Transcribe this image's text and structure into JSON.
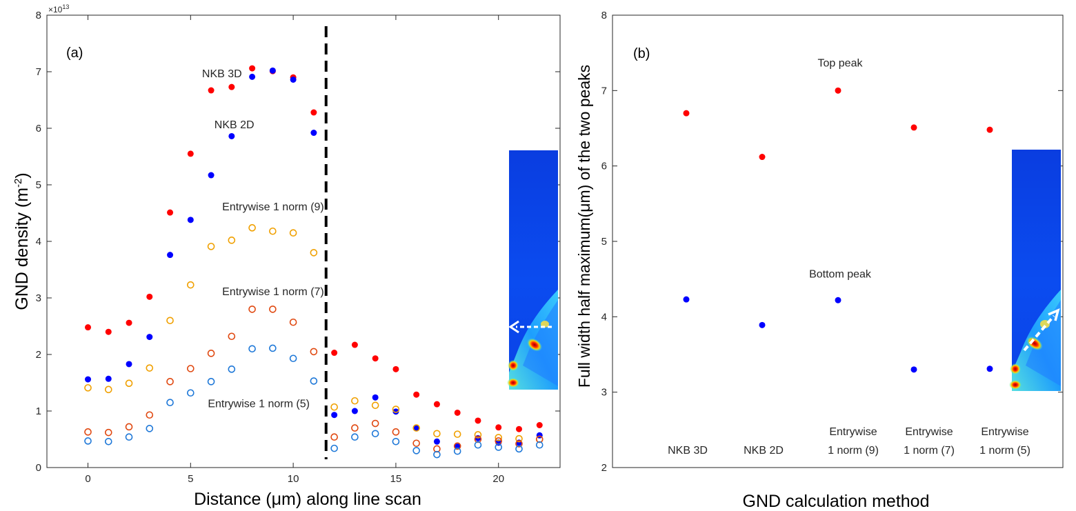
{
  "colors": {
    "red": "#ff0000",
    "blue": "#0000ff",
    "orange": "#f0a000",
    "darkorange": "#e04810",
    "lightblue": "#1e78d8",
    "dashed_line": "#000000"
  },
  "inset_images": [
    "gnd-map-thumbnail",
    "gnd-map-thumbnail"
  ],
  "chart_data": [
    {
      "type": "scatter",
      "panel_label": "(a)",
      "xlabel": "Distance (μm) along line scan",
      "ylabel_main": "GND density (m",
      "ylabel_sup": "-2",
      "ylabel_close": ")",
      "multiplier_prefix": "×10",
      "multiplier_exp": "13",
      "xlim": [
        -2,
        23
      ],
      "ylim": [
        0,
        8
      ],
      "xticks": [
        0,
        5,
        10,
        15,
        20
      ],
      "yticks": [
        0,
        1,
        2,
        3,
        4,
        5,
        6,
        7,
        8
      ],
      "vline_x": 11.6,
      "annotations": [
        {
          "text": "NKB 3D",
          "x": 7.5,
          "y": 6.9
        },
        {
          "text": "NKB 2D",
          "x": 8.1,
          "y": 6.0
        },
        {
          "text": "Entrywise 1 norm (9)",
          "x": 11.5,
          "y": 4.55
        },
        {
          "text": "Entrywise 1 norm (7)",
          "x": 11.5,
          "y": 3.05
        },
        {
          "text": "Entrywise 1 norm (5)",
          "x": 10.8,
          "y": 1.07
        }
      ],
      "series": [
        {
          "name": "NKB 3D",
          "marker": "filled",
          "color": "#ff0000",
          "x": [
            0,
            1,
            2,
            3,
            4,
            5,
            6,
            7,
            8,
            9,
            10,
            11,
            12,
            13,
            14,
            15,
            16,
            17,
            18,
            19,
            20,
            21,
            22
          ],
          "y": [
            2.48,
            2.4,
            2.56,
            3.02,
            4.51,
            5.55,
            6.67,
            6.73,
            7.06,
            7.01,
            6.9,
            6.28,
            2.03,
            2.17,
            1.93,
            1.74,
            1.29,
            1.12,
            0.97,
            0.83,
            0.71,
            0.68,
            0.75
          ]
        },
        {
          "name": "NKB 2D",
          "marker": "filled",
          "color": "#0000ff",
          "x": [
            0,
            1,
            2,
            3,
            4,
            5,
            6,
            7,
            8,
            9,
            10,
            11,
            12,
            13,
            14,
            15,
            16,
            17,
            18,
            19,
            20,
            21,
            22
          ],
          "y": [
            1.56,
            1.57,
            1.83,
            2.31,
            3.76,
            4.38,
            5.17,
            5.86,
            6.91,
            7.02,
            6.86,
            5.92,
            0.93,
            1.0,
            1.24,
            0.99,
            0.7,
            0.46,
            0.37,
            0.52,
            0.44,
            0.44,
            0.57
          ]
        },
        {
          "name": "Entrywise 1 norm (9)",
          "marker": "open",
          "color": "#f0a000",
          "x": [
            0,
            1,
            2,
            3,
            4,
            5,
            6,
            7,
            8,
            9,
            10,
            11,
            12,
            13,
            14,
            15,
            16,
            17,
            18,
            19,
            20,
            21,
            22
          ],
          "y": [
            1.41,
            1.38,
            1.49,
            1.76,
            2.6,
            3.23,
            3.91,
            4.02,
            4.24,
            4.18,
            4.15,
            3.8,
            1.07,
            1.18,
            1.1,
            1.03,
            0.7,
            0.6,
            0.59,
            0.58,
            0.53,
            0.51,
            0.5
          ]
        },
        {
          "name": "Entrywise 1 norm (7)",
          "marker": "open",
          "color": "#e04810",
          "x": [
            0,
            1,
            2,
            3,
            4,
            5,
            6,
            7,
            8,
            9,
            10,
            11,
            12,
            13,
            14,
            15,
            16,
            17,
            18,
            19,
            20,
            21,
            22
          ],
          "y": [
            0.63,
            0.62,
            0.72,
            0.93,
            1.52,
            1.75,
            2.02,
            2.32,
            2.8,
            2.8,
            2.57,
            2.05,
            0.54,
            0.7,
            0.78,
            0.63,
            0.43,
            0.33,
            0.38,
            0.5,
            0.47,
            0.42,
            0.5
          ]
        },
        {
          "name": "Entrywise 1 norm (5)",
          "marker": "open",
          "color": "#1e78d8",
          "x": [
            0,
            1,
            2,
            3,
            4,
            5,
            6,
            7,
            8,
            9,
            10,
            11,
            12,
            13,
            14,
            15,
            16,
            17,
            18,
            19,
            20,
            21,
            22
          ],
          "y": [
            0.47,
            0.46,
            0.54,
            0.69,
            1.15,
            1.32,
            1.52,
            1.74,
            2.1,
            2.11,
            1.93,
            1.53,
            0.34,
            0.54,
            0.6,
            0.46,
            0.3,
            0.23,
            0.29,
            0.4,
            0.36,
            0.33,
            0.4
          ]
        }
      ]
    },
    {
      "type": "scatter",
      "panel_label": "(b)",
      "xlabel": "GND calculation method",
      "ylabel": "Full width half maximum(μm) of the two peaks",
      "xlim": [
        0,
        6
      ],
      "ylim": [
        2,
        8
      ],
      "yticks": [
        2,
        3,
        4,
        5,
        6,
        7,
        8
      ],
      "categories": [
        {
          "line1": "",
          "line2": "NKB 3D"
        },
        {
          "line1": "",
          "line2": "NKB 2D"
        },
        {
          "line1": "Entrywise",
          "line2": "1 norm (9)"
        },
        {
          "line1": "Entrywise",
          "line2": "1 norm (7)"
        },
        {
          "line1": "Entrywise",
          "line2": "1 norm (5)"
        }
      ],
      "annotations": [
        {
          "text": "Top peak",
          "x": 2.75,
          "y": 7.3
        },
        {
          "text": "Bottom peak",
          "x": 2.75,
          "y": 4.5
        }
      ],
      "series": [
        {
          "name": "Top peak",
          "marker": "filled",
          "color": "#ff0000",
          "x": [
            1,
            2,
            3,
            4,
            5
          ],
          "y": [
            6.7,
            6.12,
            7.0,
            6.51,
            6.48
          ]
        },
        {
          "name": "Bottom peak",
          "marker": "filled",
          "color": "#0000ff",
          "x": [
            1,
            2,
            3,
            4,
            5
          ],
          "y": [
            4.23,
            3.89,
            4.22,
            3.3,
            3.31
          ]
        }
      ]
    }
  ]
}
